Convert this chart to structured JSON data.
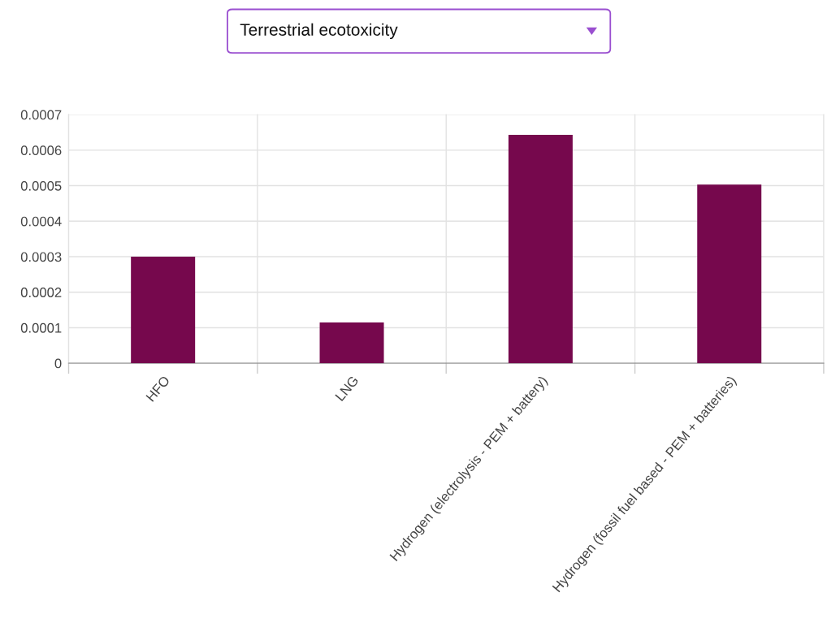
{
  "chart_data": {
    "type": "bar",
    "title": "Terrestrial ecotoxicity",
    "categories": [
      "HFO",
      "LNG",
      "Hydrogen (electrolysis - PEM + battery)",
      "Hydrogen (fossil fuel based - PEM + batteries)"
    ],
    "values": [
      0.0003,
      0.000115,
      0.000643,
      0.000503
    ],
    "color": "#76084d",
    "ylim": [
      0,
      0.0007
    ],
    "yticks": [
      0,
      0.0001,
      0.0002,
      0.0003,
      0.0004,
      0.0005,
      0.0006,
      0.0007
    ],
    "grid": true
  }
}
